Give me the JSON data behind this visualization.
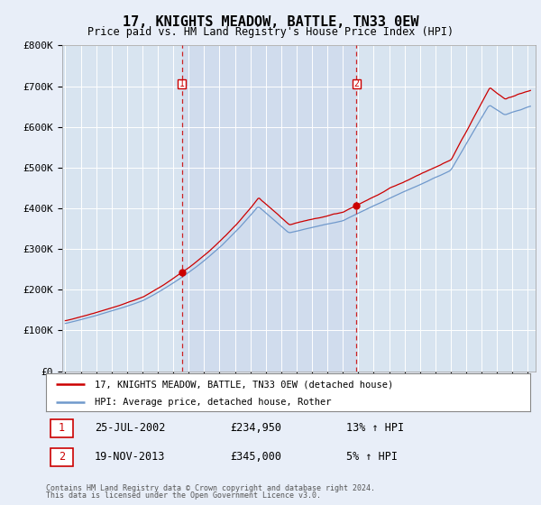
{
  "title": "17, KNIGHTS MEADOW, BATTLE, TN33 0EW",
  "subtitle": "Price paid vs. HM Land Registry's House Price Index (HPI)",
  "legend_line1": "17, KNIGHTS MEADOW, BATTLE, TN33 0EW (detached house)",
  "legend_line2": "HPI: Average price, detached house, Rother",
  "sale1_date": "25-JUL-2002",
  "sale1_price": 234950,
  "sale1_label": "£234,950",
  "sale1_pct": "13% ↑ HPI",
  "sale1_year": 2002.56,
  "sale2_date": "19-NOV-2013",
  "sale2_price": 345000,
  "sale2_label": "£345,000",
  "sale2_pct": "5% ↑ HPI",
  "sale2_year": 2013.88,
  "footer1": "Contains HM Land Registry data © Crown copyright and database right 2024.",
  "footer2": "This data is licensed under the Open Government Licence v3.0.",
  "bg_color": "#e8eef8",
  "plot_bg": "#d8e4f0",
  "plot_bg_highlight": "#cddaec",
  "line_color_red": "#cc0000",
  "line_color_blue": "#7099cc",
  "grid_color": "#ffffff",
  "ylim": [
    0,
    800000
  ],
  "xlim_start": 1994.8,
  "xlim_end": 2025.5
}
